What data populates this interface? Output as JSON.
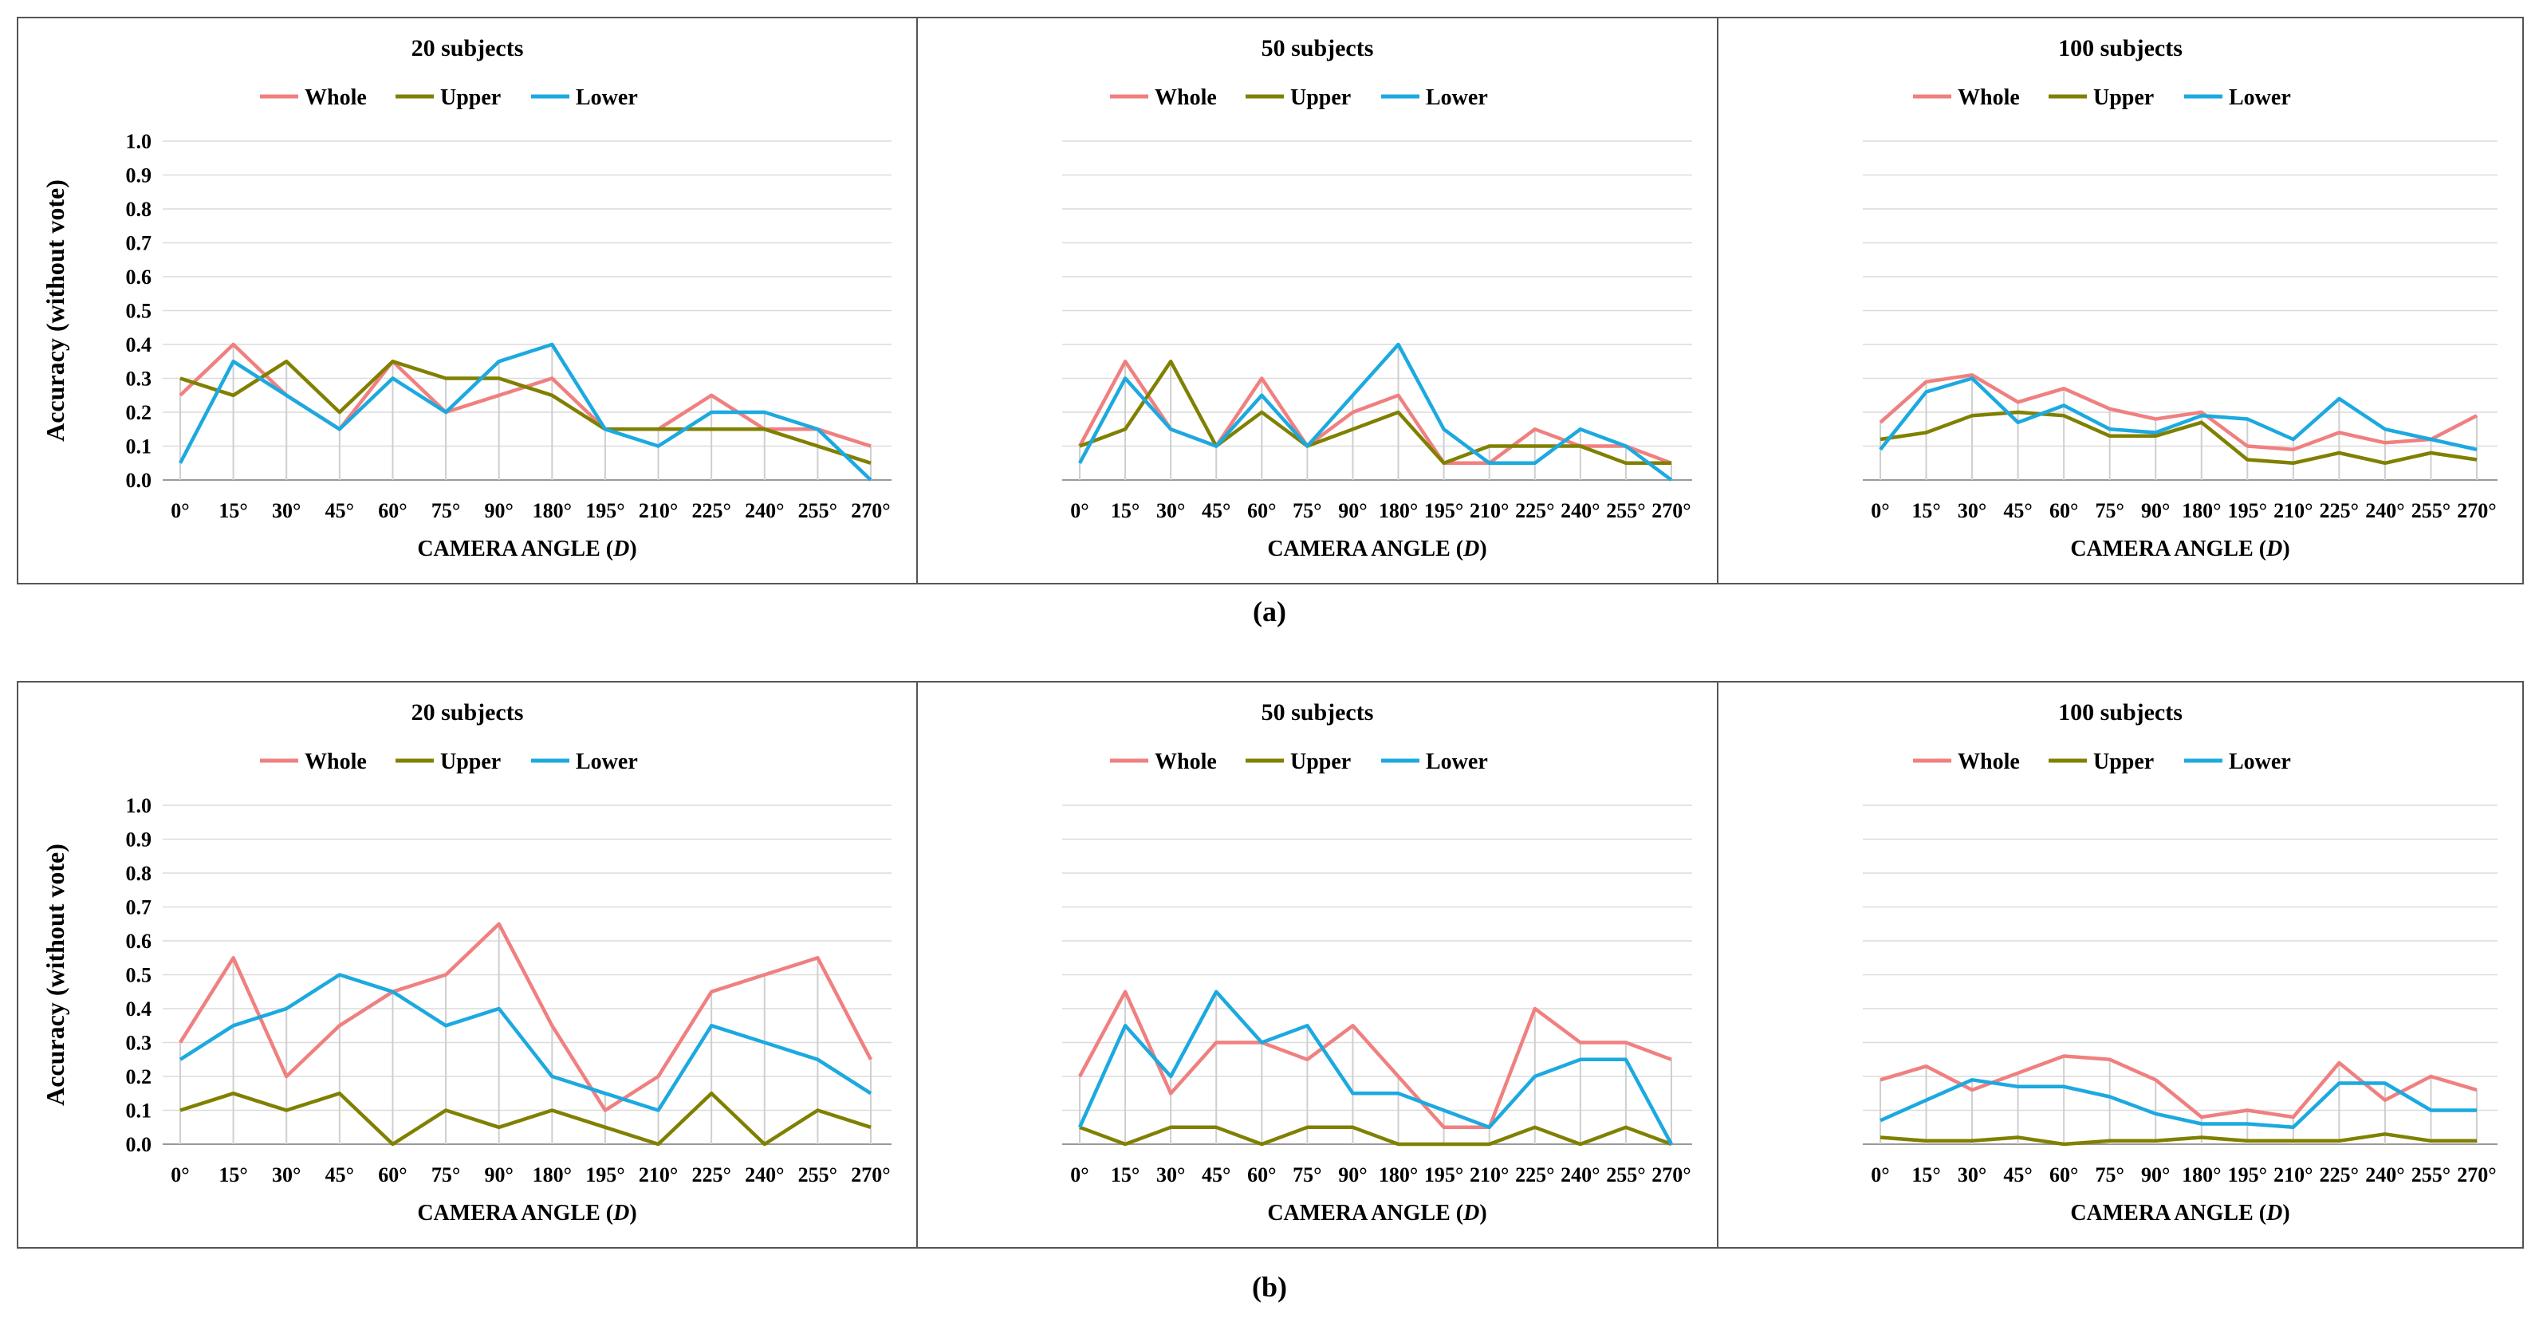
{
  "figure": {
    "row_labels": [
      "(a)",
      "(b)"
    ]
  },
  "legend": [
    "Whole",
    "Upper",
    "Lower"
  ],
  "colors": {
    "Whole": "#F08080",
    "Upper": "#808000",
    "Lower": "#1CA9E0"
  },
  "chart_data": [
    {
      "type": "line",
      "row": "(a)",
      "title": "20 subjects",
      "xlabel": "CAMERA ANGLE (D)",
      "ylabel": "Accuracy (without vote)",
      "categories": [
        "0°",
        "15°",
        "30°",
        "45°",
        "60°",
        "75°",
        "90°",
        "180°",
        "195°",
        "210°",
        "225°",
        "240°",
        "255°",
        "270°"
      ],
      "ylim": [
        0,
        1.0
      ],
      "yticks": [
        "0.0",
        "0.1",
        "0.2",
        "0.3",
        "0.4",
        "0.5",
        "0.6",
        "0.7",
        "0.8",
        "0.9",
        "1.0"
      ],
      "grid": true,
      "legend_position": "top",
      "series": [
        {
          "name": "Whole",
          "values": [
            0.25,
            0.4,
            0.25,
            0.15,
            0.35,
            0.2,
            0.25,
            0.3,
            0.15,
            0.15,
            0.25,
            0.15,
            0.15,
            0.1
          ]
        },
        {
          "name": "Upper",
          "values": [
            0.3,
            0.25,
            0.35,
            0.2,
            0.35,
            0.3,
            0.3,
            0.25,
            0.15,
            0.15,
            0.15,
            0.15,
            0.1,
            0.05
          ]
        },
        {
          "name": "Lower",
          "values": [
            0.05,
            0.35,
            0.25,
            0.15,
            0.3,
            0.2,
            0.35,
            0.4,
            0.15,
            0.1,
            0.2,
            0.2,
            0.15,
            0.0
          ]
        }
      ]
    },
    {
      "type": "line",
      "row": "(a)",
      "title": "50 subjects",
      "xlabel": "CAMERA ANGLE (D)",
      "categories": [
        "0°",
        "15°",
        "30°",
        "45°",
        "60°",
        "75°",
        "90°",
        "180°",
        "195°",
        "210°",
        "225°",
        "240°",
        "255°",
        "270°"
      ],
      "ylim": [
        0,
        1.0
      ],
      "grid": true,
      "legend_position": "top",
      "series": [
        {
          "name": "Whole",
          "values": [
            0.1,
            0.35,
            0.15,
            0.1,
            0.3,
            0.1,
            0.2,
            0.25,
            0.05,
            0.05,
            0.15,
            0.1,
            0.1,
            0.05
          ]
        },
        {
          "name": "Upper",
          "values": [
            0.1,
            0.15,
            0.35,
            0.1,
            0.2,
            0.1,
            0.15,
            0.2,
            0.05,
            0.1,
            0.1,
            0.1,
            0.05,
            0.05
          ]
        },
        {
          "name": "Lower",
          "values": [
            0.05,
            0.3,
            0.15,
            0.1,
            0.25,
            0.1,
            0.25,
            0.4,
            0.15,
            0.05,
            0.05,
            0.15,
            0.1,
            0.0
          ]
        }
      ]
    },
    {
      "type": "line",
      "row": "(a)",
      "title": "100 subjects",
      "xlabel": "CAMERA ANGLE (D)",
      "categories": [
        "0°",
        "15°",
        "30°",
        "45°",
        "60°",
        "75°",
        "90°",
        "180°",
        "195°",
        "210°",
        "225°",
        "240°",
        "255°",
        "270°"
      ],
      "ylim": [
        0,
        1.0
      ],
      "grid": true,
      "legend_position": "top",
      "series": [
        {
          "name": "Whole",
          "values": [
            0.17,
            0.29,
            0.31,
            0.23,
            0.27,
            0.21,
            0.18,
            0.2,
            0.1,
            0.09,
            0.14,
            0.11,
            0.12,
            0.19
          ]
        },
        {
          "name": "Upper",
          "values": [
            0.12,
            0.14,
            0.19,
            0.2,
            0.19,
            0.13,
            0.13,
            0.17,
            0.06,
            0.05,
            0.08,
            0.05,
            0.08,
            0.06
          ]
        },
        {
          "name": "Lower",
          "values": [
            0.09,
            0.26,
            0.3,
            0.17,
            0.22,
            0.15,
            0.14,
            0.19,
            0.18,
            0.12,
            0.24,
            0.15,
            0.12,
            0.09
          ]
        }
      ]
    },
    {
      "type": "line",
      "row": "(b)",
      "title": "20 subjects",
      "xlabel": "CAMERA ANGLE (D)",
      "ylabel": "Accuracy (without vote)",
      "categories": [
        "0°",
        "15°",
        "30°",
        "45°",
        "60°",
        "75°",
        "90°",
        "180°",
        "195°",
        "210°",
        "225°",
        "240°",
        "255°",
        "270°"
      ],
      "ylim": [
        0,
        1.0
      ],
      "yticks": [
        "0.0",
        "0.1",
        "0.2",
        "0.3",
        "0.4",
        "0.5",
        "0.6",
        "0.7",
        "0.8",
        "0.9",
        "1.0"
      ],
      "grid": true,
      "legend_position": "top",
      "series": [
        {
          "name": "Whole",
          "values": [
            0.3,
            0.55,
            0.2,
            0.35,
            0.45,
            0.5,
            0.65,
            0.35,
            0.1,
            0.2,
            0.45,
            0.5,
            0.55,
            0.25
          ]
        },
        {
          "name": "Upper",
          "values": [
            0.1,
            0.15,
            0.1,
            0.15,
            0.0,
            0.1,
            0.05,
            0.1,
            0.05,
            0.0,
            0.15,
            0.0,
            0.1,
            0.05
          ]
        },
        {
          "name": "Lower",
          "values": [
            0.25,
            0.35,
            0.4,
            0.5,
            0.45,
            0.35,
            0.4,
            0.2,
            0.15,
            0.1,
            0.35,
            0.3,
            0.25,
            0.15
          ]
        }
      ]
    },
    {
      "type": "line",
      "row": "(b)",
      "title": "50 subjects",
      "xlabel": "CAMERA ANGLE (D)",
      "categories": [
        "0°",
        "15°",
        "30°",
        "45°",
        "60°",
        "75°",
        "90°",
        "180°",
        "195°",
        "210°",
        "225°",
        "240°",
        "255°",
        "270°"
      ],
      "ylim": [
        0,
        1.0
      ],
      "grid": true,
      "legend_position": "top",
      "series": [
        {
          "name": "Whole",
          "values": [
            0.2,
            0.45,
            0.15,
            0.3,
            0.3,
            0.25,
            0.35,
            0.2,
            0.05,
            0.05,
            0.4,
            0.3,
            0.3,
            0.25
          ]
        },
        {
          "name": "Upper",
          "values": [
            0.05,
            0.0,
            0.05,
            0.05,
            0.0,
            0.05,
            0.05,
            0.0,
            0.0,
            0.0,
            0.05,
            0.0,
            0.05,
            0.0
          ]
        },
        {
          "name": "Lower",
          "values": [
            0.05,
            0.35,
            0.2,
            0.45,
            0.3,
            0.35,
            0.15,
            0.15,
            0.1,
            0.05,
            0.2,
            0.25,
            0.25,
            0.0
          ]
        }
      ]
    },
    {
      "type": "line",
      "row": "(b)",
      "title": "100 subjects",
      "xlabel": "CAMERA ANGLE (D)",
      "categories": [
        "0°",
        "15°",
        "30°",
        "45°",
        "60°",
        "75°",
        "90°",
        "180°",
        "195°",
        "210°",
        "225°",
        "240°",
        "255°",
        "270°"
      ],
      "ylim": [
        0,
        1.0
      ],
      "grid": true,
      "legend_position": "top",
      "series": [
        {
          "name": "Whole",
          "values": [
            0.19,
            0.23,
            0.16,
            0.21,
            0.26,
            0.25,
            0.19,
            0.08,
            0.1,
            0.08,
            0.24,
            0.13,
            0.2,
            0.16
          ]
        },
        {
          "name": "Upper",
          "values": [
            0.02,
            0.01,
            0.01,
            0.02,
            0.0,
            0.01,
            0.01,
            0.02,
            0.01,
            0.01,
            0.01,
            0.03,
            0.01,
            0.01
          ]
        },
        {
          "name": "Lower",
          "values": [
            0.07,
            0.13,
            0.19,
            0.17,
            0.17,
            0.14,
            0.09,
            0.06,
            0.06,
            0.05,
            0.18,
            0.18,
            0.1,
            0.1
          ]
        }
      ]
    }
  ]
}
